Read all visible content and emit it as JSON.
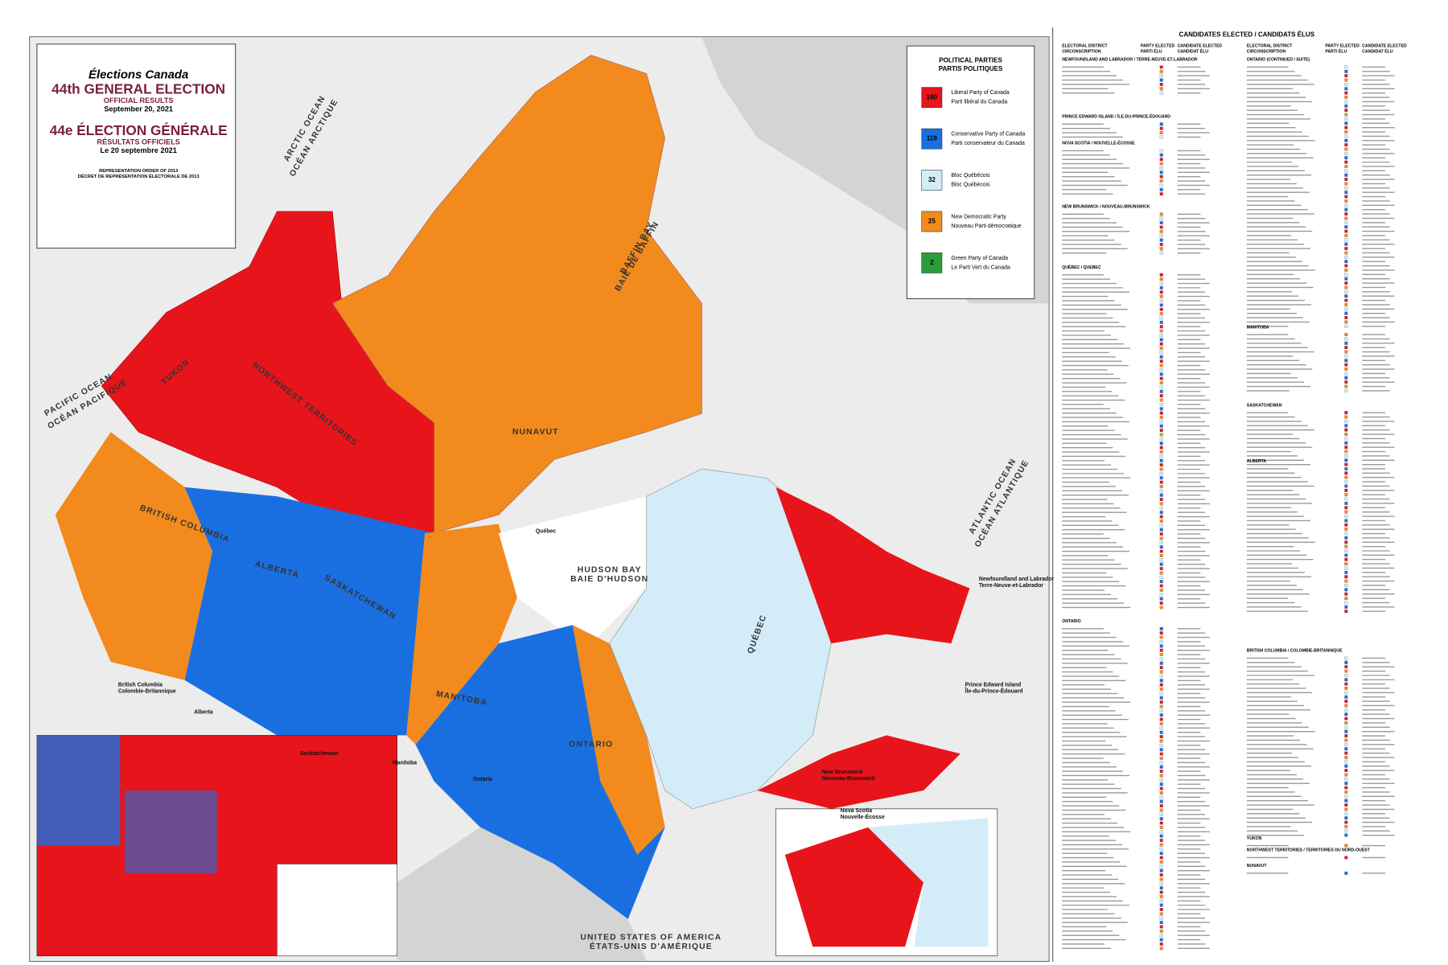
{
  "header": {
    "organization": "Élections Canada",
    "title_en": "44th GENERAL ELECTION",
    "subtitle_en": "OFFICIAL RESULTS",
    "date_en": "September 20, 2021",
    "title_fr": "44e ÉLECTION GÉNÉRALE",
    "subtitle_fr": "RÉSULTATS OFFICIELS",
    "date_fr": "Le 20 septembre 2021",
    "order_en": "REPRESENTATION ORDER OF 2013",
    "order_fr": "DÉCRET DE REPRÉSENTATION ÉLECTORALE DE 2013"
  },
  "legend": {
    "title_en": "POLITICAL PARTIES",
    "title_fr": "PARTIS POLITIQUES",
    "parties": [
      {
        "name_en": "Liberal Party of Canada",
        "name_fr": "Parti libéral du Canada",
        "seats": 160,
        "color": "#e8141b"
      },
      {
        "name_en": "Conservative Party of Canada",
        "name_fr": "Parti conservateur du Canada",
        "seats": 119,
        "color": "#1a6fe0"
      },
      {
        "name_en": "Bloc Québécois",
        "name_fr": "Bloc Québécois",
        "seats": 32,
        "color": "#d3ecf8"
      },
      {
        "name_en": "New Democratic Party",
        "name_fr": "Nouveau Parti démocratique",
        "seats": 25,
        "color": "#f28a1e"
      },
      {
        "name_en": "Green Party of Canada",
        "name_fr": "Le Parti Vert du Canada",
        "seats": 2,
        "color": "#2a9e3a"
      }
    ]
  },
  "map_labels": [
    "YUKON",
    "NORTHWEST TERRITORIES",
    "NUNAVUT",
    "BRITISH COLUMBIA",
    "ALBERTA",
    "SASKATCHEWAN",
    "MANITOBA",
    "ONTARIO",
    "QUÉBEC",
    "HUDSON BAY",
    "BAIE D'HUDSON",
    "BAFFIN BAY",
    "BAIE DE BAFFIN",
    "PACIFIC OCEAN",
    "OCÉAN PACIFIQUE",
    "ATLANTIC OCEAN",
    "OCÉAN ATLANTIQUE",
    "ARCTIC OCEAN",
    "OCÉAN ARCTIQUE",
    "UNITED STATES OF AMERICA",
    "ÉTATS-UNIS D'AMÉRIQUE"
  ],
  "inset_labels": [
    "British Columbia",
    "Colombie-Britannique",
    "Alberta",
    "Saskatchewan",
    "Manitoba",
    "Ontario",
    "Québec",
    "New Brunswick",
    "Nouveau-Brunswick",
    "Nova Scotia",
    "Nouvelle-Écosse",
    "Prince Edward Island",
    "Île-du-Prince-Édouard",
    "Newfoundland and Labrador",
    "Terre-Neuve-et-Labrador"
  ],
  "candidates": {
    "title": "CANDIDATES ELECTED / CANDIDATS ÉLUS",
    "column_headers": [
      "ELECTORAL DISTRICT",
      "CIRCONSCRIPTION",
      "PARTY ELECTED",
      "PARTI ÉLU",
      "CANDIDATE ELECTED",
      "CANDIDAT ÉLU"
    ],
    "sections": [
      "NEWFOUNDLAND AND LABRADOR / TERRE-NEUVE-ET-LABRADOR",
      "PRINCE EDWARD ISLAND / ÎLE-DU-PRINCE-ÉDOUARD",
      "NOVA SCOTIA / NOUVELLE-ÉCOSSE",
      "NEW BRUNSWICK / NOUVEAU-BRUNSWICK",
      "QUÉBEC / QUEBEC",
      "ONTARIO",
      "ONTARIO (CONTINUED / SUITE)",
      "MANITOBA",
      "SASKATCHEWAN",
      "ALBERTA",
      "BRITISH COLUMBIA / COLOMBIE-BRITANNIQUE",
      "YUKON",
      "NORTHWEST TERRITORIES / TERRITOIRES DU NORD-OUEST",
      "NUNAVUT"
    ]
  }
}
